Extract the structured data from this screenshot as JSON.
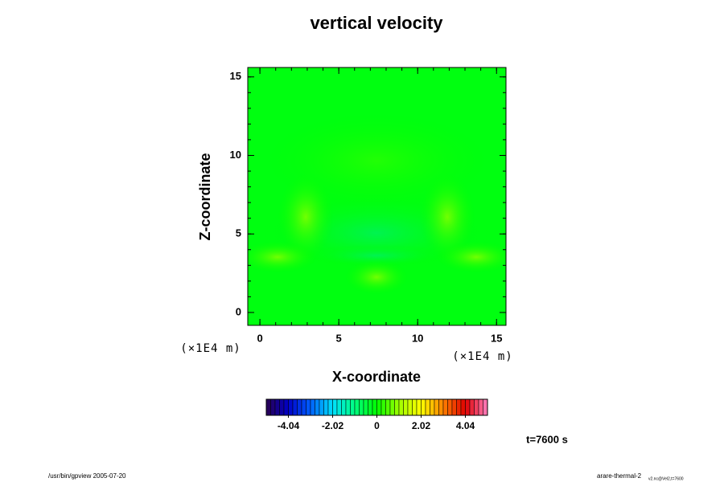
{
  "chart_data": {
    "type": "heatmap",
    "title": "vertical velocity",
    "x_label": "X-coordinate",
    "y_label": "Z-coordinate",
    "x_unit_left": "(×1E4 m)",
    "x_unit_right": "(×1E4 m)",
    "xlim": [
      -0.77,
      15.6
    ],
    "ylim": [
      -0.82,
      15.6
    ],
    "xticks": [
      0,
      5,
      10,
      15
    ],
    "yticks": [
      0,
      5,
      10,
      15
    ],
    "minor_tick_step": 1,
    "colorbar": {
      "lim": [
        -5.05,
        5.05
      ],
      "ticks": [
        -4.04,
        -2.02,
        0,
        2.02,
        4.04
      ],
      "colormap": [
        "#2a0050",
        "#0000c8",
        "#0060ff",
        "#00e0ff",
        "#00ff80",
        "#00ff00",
        "#a0ff00",
        "#ffff00",
        "#ff8000",
        "#e00000",
        "#ff80c0"
      ]
    },
    "time_label": "t=7600 s",
    "footer_left": "/usr/bin/gpview 2005-07-20",
    "footer_right": "arare-thermal-2",
    "footer_right_sub": "v2.nc@Vel2,t=7600"
  }
}
